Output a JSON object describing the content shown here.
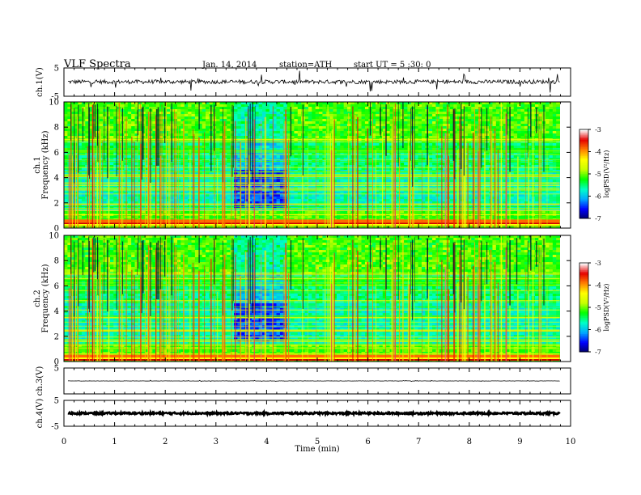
{
  "header": {
    "title": "VLF  Spectra",
    "date": "Jan. 14, 2014",
    "station": "station=ATH",
    "start": "start  UT  =   5  :30: 0"
  },
  "colors": {
    "colormap": [
      "#000066",
      "#0000ff",
      "#00a8ff",
      "#00ffc8",
      "#00ff00",
      "#c8ff00",
      "#ffff00",
      "#ff8000",
      "#e60000",
      "#ffffff"
    ],
    "trace": "#000000"
  },
  "chart_data": [
    {
      "type": "line",
      "name": "ch1-waveform",
      "ylabel": "ch.1(V)",
      "ylim": [
        -5,
        5
      ],
      "yticks": [
        "5",
        "-5"
      ],
      "xlim": [
        0,
        10
      ],
      "baseline": 0.1,
      "noise": 0.7,
      "spikes": 1.8
    },
    {
      "type": "heatmap",
      "name": "ch1-spectrogram",
      "ylabel": "ch.1\nFrequency (kHz)",
      "ylim": [
        0,
        10
      ],
      "yticks": [
        "0",
        "2",
        "4",
        "6",
        "8",
        "10"
      ],
      "xlim": [
        0,
        9.8
      ],
      "colorbar": {
        "label": "logPSD(V²/Hz)",
        "ticks": [
          "-3",
          "-4",
          "-5",
          "-6",
          "-7"
        ],
        "range": [
          -7,
          -3
        ]
      },
      "quiet_band_min": [
        3.3,
        4.4
      ],
      "strong_bands_khz": [
        0.3,
        0.55
      ]
    },
    {
      "type": "heatmap",
      "name": "ch2-spectrogram",
      "ylabel": "ch.2\nFrequency (kHz)",
      "ylim": [
        0,
        10
      ],
      "yticks": [
        "0",
        "2",
        "4",
        "6",
        "8",
        "10"
      ],
      "xlim": [
        0,
        9.8
      ],
      "colorbar": {
        "label": "logPSD(V²/Hz)",
        "ticks": [
          "-3",
          "-4",
          "-5",
          "-6",
          "-7"
        ],
        "range": [
          -7,
          -3
        ]
      },
      "quiet_band_min": [
        3.3,
        4.4
      ],
      "strong_bands_khz": [
        0.2,
        0.4
      ]
    },
    {
      "type": "line",
      "name": "ch3-waveform",
      "ylabel": "ch.3(V)",
      "ylim": [
        -5,
        5
      ],
      "yticks": [
        "5"
      ],
      "xlim": [
        0,
        10
      ],
      "baseline": 0.0,
      "noise": 0.05,
      "spikes": 0.1
    },
    {
      "type": "line",
      "name": "ch4-waveform",
      "ylabel": "ch.4(V)",
      "ylim": [
        -5,
        5
      ],
      "yticks": [
        "5",
        "-5"
      ],
      "xlim": [
        0,
        10
      ],
      "baseline": 0.0,
      "noise": 0.35,
      "spikes": 0.0
    }
  ],
  "xaxis": {
    "label": "Time  (min)",
    "ticks": [
      "0",
      "1",
      "2",
      "3",
      "4",
      "5",
      "6",
      "7",
      "8",
      "9",
      "10"
    ]
  }
}
